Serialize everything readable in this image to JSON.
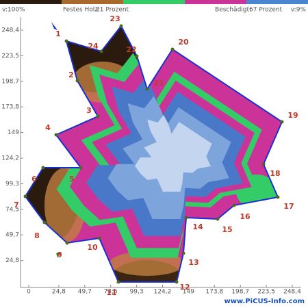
{
  "header": {
    "v_max": "v:100%",
    "solid_label": "Festes Holz:",
    "solid_value": "21 Prozent",
    "damaged_label": "Beschädigt:",
    "damaged_value": "67 Prozent",
    "v_min": "v:9%"
  },
  "axes": {
    "y_ticks": [
      "248,4",
      "223,5",
      "198,7",
      "173,8",
      "149",
      "124,2",
      "99,3",
      "74,5",
      "49,7",
      "24,8"
    ],
    "x_ticks": [
      "0",
      "24,8",
      "49,7",
      "74,5",
      "99,3",
      "124,2",
      "149",
      "173,8",
      "198,7",
      "223,5",
      "248,4"
    ]
  },
  "sensors": [
    "1",
    "2",
    "3",
    "4",
    "5",
    "6",
    "7",
    "8",
    "9",
    "10",
    "11",
    "12",
    "13",
    "14",
    "15",
    "16",
    "17",
    "18",
    "19",
    "20",
    "21",
    "22",
    "23",
    "24"
  ],
  "footer": "www.PiCUS-Info.com"
}
